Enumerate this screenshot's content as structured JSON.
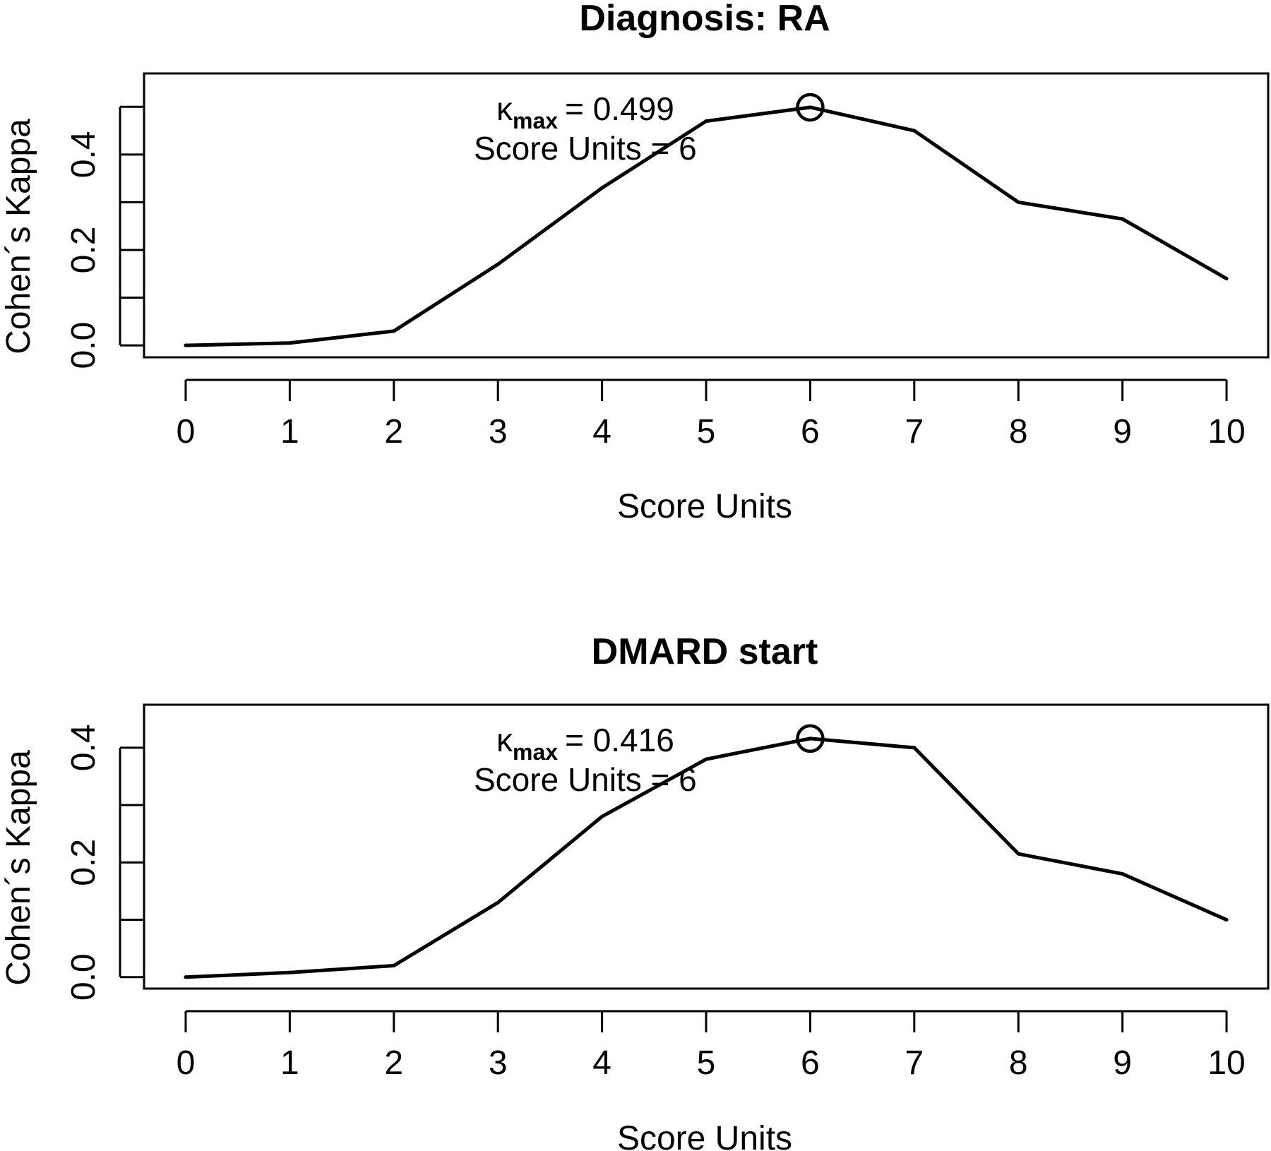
{
  "chart_data": [
    {
      "type": "line",
      "title": "Diagnosis: RA",
      "xlabel": "Score Units",
      "ylabel": "Cohen´s Kappa",
      "x": [
        0,
        1,
        2,
        3,
        4,
        5,
        6,
        7,
        8,
        9,
        10
      ],
      "series": [
        {
          "values": [
            0.0,
            0.005,
            0.03,
            0.17,
            0.33,
            0.47,
            0.499,
            0.45,
            0.3,
            0.265,
            0.14
          ]
        }
      ],
      "xlim": [
        -0.4,
        10.4
      ],
      "ylim": [
        -0.025,
        0.57
      ],
      "xticks": [
        "0",
        "1",
        "2",
        "3",
        "4",
        "5",
        "6",
        "7",
        "8",
        "9",
        "10"
      ],
      "yticks": [
        "0.0",
        "0.2",
        "0.4"
      ],
      "ytick_minor": [
        0.1,
        0.3,
        0.5
      ],
      "max_marker": {
        "x": 6,
        "y": 0.499
      },
      "annotation": {
        "kappa_symbol": "κ",
        "kappa_sub": "max",
        "kappa_value": "= 0.499",
        "score_line": "Score Units = 6"
      },
      "grid": false,
      "legend": "none"
    },
    {
      "type": "line",
      "title": "DMARD start",
      "xlabel": "Score Units",
      "ylabel": "Cohen´s Kappa",
      "x": [
        0,
        1,
        2,
        3,
        4,
        5,
        6,
        7,
        8,
        9,
        10
      ],
      "series": [
        {
          "values": [
            0.0,
            0.008,
            0.02,
            0.13,
            0.28,
            0.38,
            0.416,
            0.4,
            0.215,
            0.18,
            0.1
          ]
        }
      ],
      "xlim": [
        -0.4,
        10.4
      ],
      "ylim": [
        -0.02,
        0.475
      ],
      "xticks": [
        "0",
        "1",
        "2",
        "3",
        "4",
        "5",
        "6",
        "7",
        "8",
        "9",
        "10"
      ],
      "yticks": [
        "0.0",
        "0.2",
        "0.4"
      ],
      "ytick_minor": [
        0.1,
        0.3
      ],
      "max_marker": {
        "x": 6,
        "y": 0.416
      },
      "annotation": {
        "kappa_symbol": "κ",
        "kappa_sub": "max",
        "kappa_value": "= 0.416",
        "score_line": "Score Units = 6"
      },
      "grid": false,
      "legend": "none"
    }
  ]
}
